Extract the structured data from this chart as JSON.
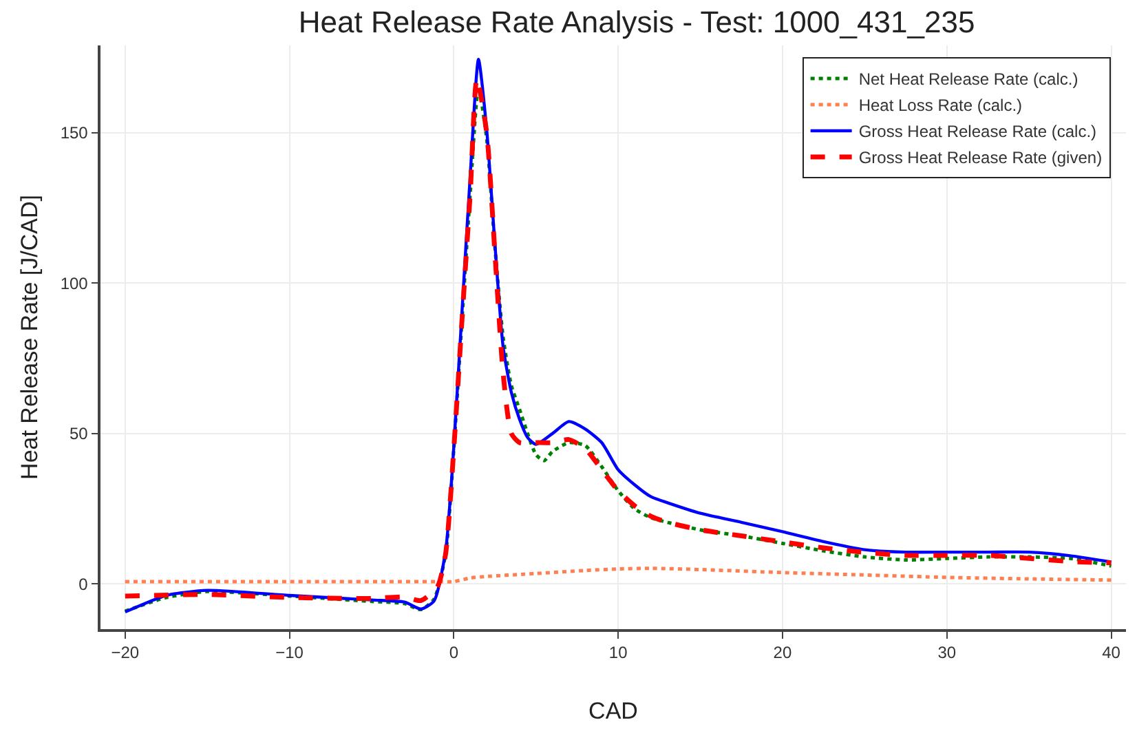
{
  "chart_data": {
    "type": "line",
    "title": "Heat Release Rate Analysis - Test: 1000_431_235",
    "xlabel": "CAD",
    "ylabel": "Heat Release Rate [J/CAD]",
    "xlim": [
      -21.5,
      40.9
    ],
    "ylim": [
      -15,
      179
    ],
    "xticks": [
      {
        "value": -20,
        "label": "−20"
      },
      {
        "value": -10,
        "label": "−10"
      },
      0,
      10,
      20,
      30,
      40
    ],
    "yticks": [
      0,
      50,
      100,
      150
    ],
    "grid": true,
    "legend": "top right",
    "marker": "none",
    "series": [
      {
        "name": "Net Heat Release Rate (calc.)",
        "color": "#008000",
        "line_style": "dotted",
        "x": [
          -20,
          -17.5,
          -15,
          -10,
          -5,
          -3,
          -2,
          -1.2,
          -0.5,
          0,
          0.5,
          1,
          1.5,
          2,
          2.5,
          3,
          3.5,
          4,
          5,
          5.5,
          6,
          7,
          8,
          9,
          10,
          11,
          12,
          13,
          15,
          17.5,
          20,
          22.5,
          25,
          27.5,
          30,
          32.5,
          35,
          37.5,
          40
        ],
        "values": [
          -9,
          -4.5,
          -2.5,
          -4,
          -5.8,
          -6.5,
          -8.5,
          -5,
          10,
          45,
          88,
          130,
          165,
          148,
          112,
          82,
          66,
          58,
          43,
          41,
          44,
          47,
          46,
          39,
          31,
          25,
          22,
          20.5,
          18,
          16,
          13.5,
          11,
          9,
          8,
          8.5,
          9,
          9,
          8.5,
          6
        ]
      },
      {
        "name": "Heat Loss Rate (calc.)",
        "color": "#ff7f50",
        "line_style": "dotted",
        "x": [
          -20,
          -10,
          -1,
          0,
          1,
          2,
          5,
          8,
          10,
          12,
          15,
          20,
          25,
          30,
          35,
          40
        ],
        "values": [
          0.8,
          0.8,
          0.8,
          0.8,
          2,
          2.5,
          3.5,
          4.5,
          5,
          5.2,
          4.8,
          3.8,
          3,
          2.2,
          1.7,
          1.3
        ]
      },
      {
        "name": "Gross Heat Release Rate (calc.)",
        "color": "#0000ff",
        "line_style": "solid",
        "x": [
          -20,
          -17.5,
          -15,
          -10,
          -5,
          -3,
          -2,
          -1.2,
          -0.5,
          0,
          0.5,
          1,
          1.5,
          2,
          2.5,
          3,
          3.5,
          4,
          4.5,
          5,
          6,
          7,
          8,
          9,
          10,
          11,
          12,
          13,
          15,
          17.5,
          20,
          22.5,
          25,
          27.5,
          30,
          32.5,
          35,
          37.5,
          40
        ],
        "values": [
          -9.3,
          -3.8,
          -2.1,
          -3.8,
          -5.3,
          -6,
          -8.3,
          -5.6,
          11,
          45.6,
          90.8,
          136,
          174.4,
          151,
          113,
          78.8,
          63.7,
          54.7,
          48.6,
          46.4,
          50,
          54,
          51.5,
          47,
          38,
          33,
          29,
          27,
          23.5,
          20.5,
          17.4,
          14.1,
          11.4,
          10.6,
          10.6,
          10.6,
          10.6,
          9.4,
          7.3
        ]
      },
      {
        "name": "Gross Heat Release Rate (given)",
        "color": "#ff0000",
        "line_style": "dashed",
        "x": [
          -20,
          -15,
          -10,
          -5,
          -3,
          -2,
          -1,
          -0.5,
          0,
          0.5,
          1,
          1.4,
          2,
          2.5,
          3,
          3.5,
          4,
          5,
          6,
          7,
          8,
          9,
          10,
          11,
          12,
          13,
          15,
          17.5,
          20,
          22.5,
          25,
          27.5,
          30,
          32.5,
          35,
          37.5,
          40
        ],
        "values": [
          -4,
          -3.5,
          -4.5,
          -4.8,
          -4.3,
          -5.5,
          -1,
          10,
          45,
          88,
          130,
          168,
          150,
          110,
          70,
          50,
          47,
          47,
          47,
          48,
          45,
          38,
          31,
          26,
          22.5,
          20.5,
          18,
          16,
          14,
          12,
          10.5,
          9.5,
          9.5,
          9.5,
          8.5,
          7.5,
          7
        ]
      }
    ]
  }
}
